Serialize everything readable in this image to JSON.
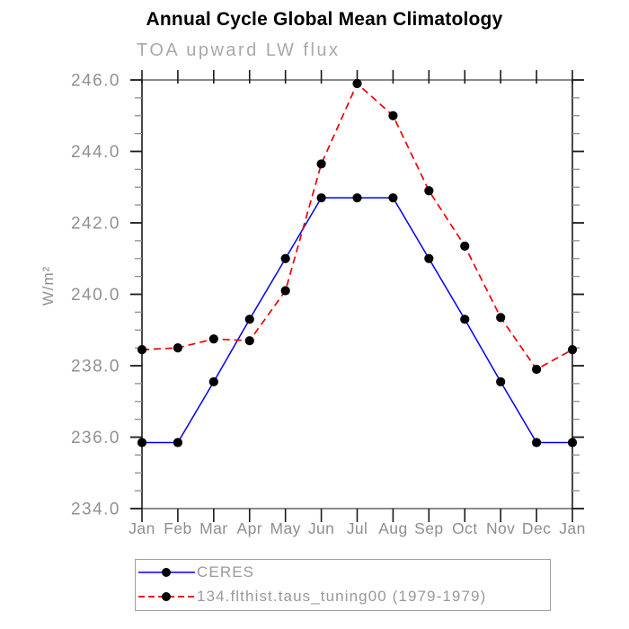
{
  "header": {
    "title": "Annual Cycle Global Mean Climatology",
    "subtitle": "TOA upward LW flux"
  },
  "chart_data": {
    "type": "line",
    "title": "Annual Cycle Global Mean Climatology",
    "subtitle": "TOA upward LW flux",
    "xlabel": "",
    "ylabel": "W/m²",
    "categories": [
      "Jan",
      "Feb",
      "Mar",
      "Apr",
      "May",
      "Jun",
      "Jul",
      "Aug",
      "Sep",
      "Oct",
      "Nov",
      "Dec",
      "Jan"
    ],
    "series": [
      {
        "name": "CERES",
        "color": "#0000ee",
        "line_style": "solid",
        "marker": "filled-circle",
        "marker_color": "#000000",
        "values": [
          235.85,
          235.85,
          237.55,
          239.3,
          241.0,
          242.7,
          242.7,
          242.7,
          241.0,
          239.3,
          237.55,
          235.85,
          235.85
        ]
      },
      {
        "name": "134.flthist.taus_tuning00 (1979-1979)",
        "color": "#ee0000",
        "line_style": "dashed",
        "marker": "filled-circle",
        "marker_color": "#000000",
        "values": [
          238.45,
          238.5,
          238.75,
          238.7,
          240.1,
          243.65,
          245.9,
          245.0,
          242.9,
          241.35,
          239.35,
          237.9,
          238.45
        ]
      }
    ],
    "ylim": [
      234.0,
      246.0
    ],
    "ytick_step": 2.0,
    "yminor_step": 0.5,
    "ytick_labels": [
      "234.0",
      "236.0",
      "238.0",
      "240.0",
      "242.0",
      "244.0",
      "246.0"
    ],
    "grid": "off",
    "legend_position": "bottom"
  },
  "colors": {
    "title": "#000000",
    "subtitle": "#a9a9a9",
    "tick_label": "#909090",
    "axis_horizontal": "#7a7a7a",
    "axis_vertical": "#1a1a1a",
    "tick": "#1a1a1a",
    "minor_tick": "#8c8c8c",
    "marker": "#000000",
    "legend_text": "#999999",
    "legend_border": "#9e9e9e"
  }
}
